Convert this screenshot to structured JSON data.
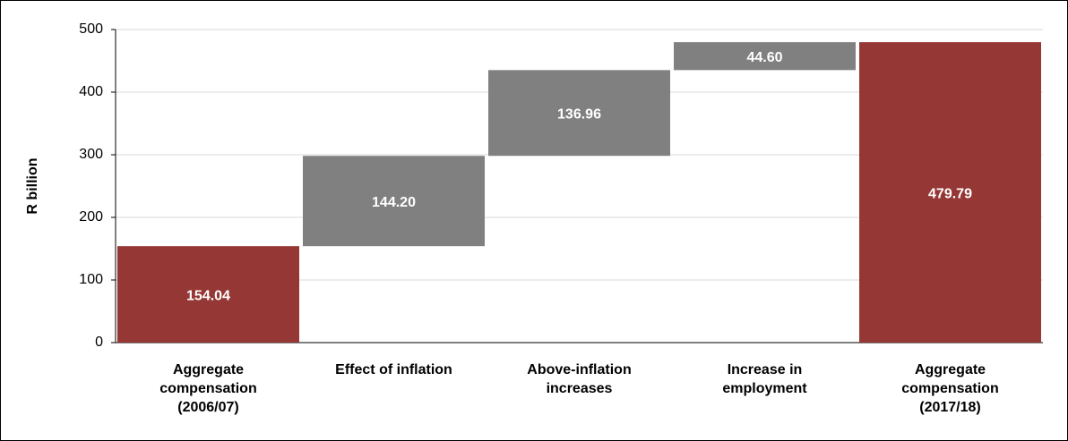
{
  "chart_data": {
    "type": "waterfall",
    "y_label": "R billion",
    "categories": [
      "Aggregate compensation (2006/07)",
      "Effect of inflation",
      "Above-inflation increases",
      "Increase in employment",
      "Aggregate compensation (2017/18)"
    ],
    "measure": [
      "absolute",
      "relative",
      "relative",
      "relative",
      "total"
    ],
    "values": [
      154.04,
      144.2,
      136.96,
      44.6,
      479.79
    ],
    "value_labels": [
      "154.04",
      "144.20",
      "136.96",
      "44.60",
      "479.79"
    ],
    "colors": [
      "#953735",
      "#808080",
      "#808080",
      "#808080",
      "#953735"
    ],
    "ylim": [
      0,
      500
    ],
    "yticks": [
      0,
      100,
      200,
      300,
      400,
      500
    ],
    "grid": true
  }
}
